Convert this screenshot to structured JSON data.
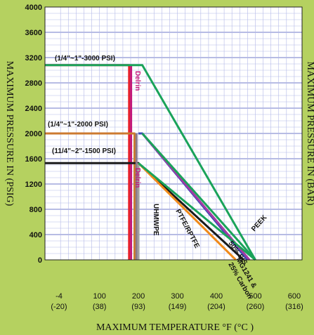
{
  "chart_data": {
    "type": "line",
    "xlabel": "MAXIMUM TEMPERATURE °F (°C )",
    "ylabel_left": "MAXIMUM PRESSURE IN (PSIG)",
    "ylabel_right": "MAXIMUM PRESSURE IN (BAR)",
    "ylim": [
      0,
      4000
    ],
    "y_ticks": [
      0,
      400,
      800,
      1200,
      1600,
      2000,
      2400,
      2800,
      3200,
      3600,
      4000
    ],
    "xlim": [
      -40,
      620
    ],
    "x_ticks": [
      {
        "f": -4,
        "c": "(-20)",
        "label": "-4"
      },
      {
        "f": 100,
        "c": "(38)",
        "label": "100"
      },
      {
        "f": 200,
        "c": "(93)",
        "label": "200"
      },
      {
        "f": 300,
        "c": "(149)",
        "label": "300"
      },
      {
        "f": 400,
        "c": "(204)",
        "label": "400"
      },
      {
        "f": 500,
        "c": "(260)",
        "label": "500"
      },
      {
        "f": 600,
        "c": "(316)",
        "label": "600"
      }
    ],
    "grid": true,
    "series": [
      {
        "name": "(1/4\"~1\"-3000 PSI)",
        "color": "#e8202a",
        "x": [
          -40,
          176,
          176
        ],
        "y": [
          3080,
          3080,
          -100
        ]
      },
      {
        "name": "Delrin",
        "color": "#c2187a",
        "x": [
          181,
          181
        ],
        "y": [
          3080,
          -100
        ]
      },
      {
        "name": "(1/4\"~1\"-2000 PSI)",
        "color": "#cc7a30",
        "x": [
          -40,
          190,
          190
        ],
        "y": [
          2000,
          2000,
          -100
        ]
      },
      {
        "name": "(11/4\"~2\"-1500 PSI)",
        "color": "#1a1a1a",
        "x": [
          -40,
          200,
          470
        ],
        "y": [
          1530,
          1530,
          0
        ]
      },
      {
        "name": "Delrin",
        "color": "#8a7a8a",
        "x": [
          195,
          195
        ],
        "y": [
          2000,
          -100
        ]
      },
      {
        "name": "UHMWPE",
        "color": "#a0a0a0",
        "x": [
          200,
          200
        ],
        "y": [
          1530,
          -100
        ]
      },
      {
        "name": "PTFE/RPTFE",
        "color": "#f08a1a",
        "x": [
          200,
          450
        ],
        "y": [
          1530,
          0
        ]
      },
      {
        "name": "50% S/S",
        "color": "#3a4ab8",
        "x": [
          200,
          210,
          480
        ],
        "y": [
          2000,
          2000,
          0
        ]
      },
      {
        "name": "MG1241 & 25% Carbon",
        "color": "#a33aa3",
        "x": [
          210,
          485
        ],
        "y": [
          2000,
          0
        ]
      },
      {
        "name": "PEEK",
        "color": "#1aa35a",
        "x": [
          -40,
          210,
          500
        ],
        "y": [
          3080,
          3080,
          0
        ]
      },
      {
        "name": "PEEK",
        "color": "#1aa35a",
        "x": [
          210,
          500
        ],
        "y": [
          2000,
          0
        ]
      },
      {
        "name": "PEEK",
        "color": "#1aa35a",
        "x": [
          200,
          500
        ],
        "y": [
          1530,
          0
        ]
      }
    ],
    "annotations": [
      {
        "text": "(1/4\"~1\"-3000 PSI)"
      },
      {
        "text": "(1/4\"~1\"-2000 PSI)"
      },
      {
        "text": "(11/4\"~2\"-1500 PSI)"
      },
      {
        "text": "Delrin"
      },
      {
        "text": "Delrin"
      },
      {
        "text": "UHMWPE"
      },
      {
        "text": "PTFE/RPTFE"
      },
      {
        "text": "50% S/S"
      },
      {
        "text": "MG1241 &"
      },
      {
        "text": "25% Carbon"
      },
      {
        "text": "PEEK"
      }
    ]
  }
}
